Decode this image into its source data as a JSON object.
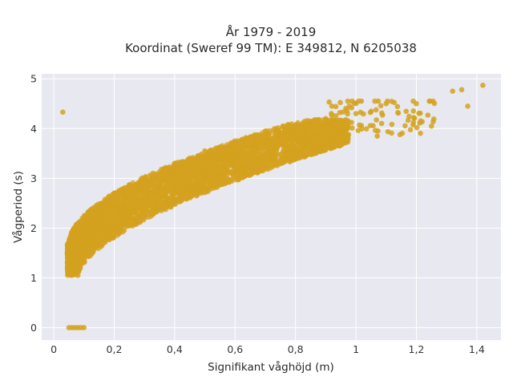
{
  "chart_data": {
    "type": "scatter",
    "title_line1": "År 1979 - 2019",
    "title_line2": "Koordinat (Sweref 99 TM): E 349812, N 6205038",
    "xlabel": "Signifikant våghöjd (m)",
    "ylabel": "Vågperiod (s)",
    "xlim": [
      -0.04,
      1.48
    ],
    "ylim": [
      -0.25,
      5.1
    ],
    "x_ticks": [
      0,
      0.2,
      0.4,
      0.6,
      0.8,
      1.0,
      1.2,
      1.4
    ],
    "x_tick_labels": [
      "0",
      "0,2",
      "0,4",
      "0,6",
      "0,8",
      "1",
      "1,2",
      "1,4"
    ],
    "y_ticks": [
      0,
      1,
      2,
      3,
      4,
      5
    ],
    "y_tick_labels": [
      "0",
      "1",
      "2",
      "3",
      "4",
      "5"
    ],
    "grid": true,
    "marker_color": "#D4A21F",
    "background_color": "#E8E9F0",
    "grid_color": "#FFFFFF",
    "sample_points": [
      {
        "x": 0.03,
        "y": 4.33
      },
      {
        "x": 0.05,
        "y": 1.55
      },
      {
        "x": 0.07,
        "y": 1.2
      },
      {
        "x": 0.08,
        "y": 1.05
      },
      {
        "x": 0.1,
        "y": 1.6
      },
      {
        "x": 0.12,
        "y": 2.1
      },
      {
        "x": 0.15,
        "y": 2.4
      },
      {
        "x": 0.2,
        "y": 2.7
      },
      {
        "x": 0.3,
        "y": 3.0
      },
      {
        "x": 0.4,
        "y": 3.3
      },
      {
        "x": 0.5,
        "y": 3.55
      },
      {
        "x": 0.6,
        "y": 3.75
      },
      {
        "x": 0.7,
        "y": 3.95
      },
      {
        "x": 0.8,
        "y": 4.05
      },
      {
        "x": 0.9,
        "y": 4.2
      },
      {
        "x": 1.0,
        "y": 4.3
      },
      {
        "x": 1.1,
        "y": 4.5
      },
      {
        "x": 1.2,
        "y": 4.5
      },
      {
        "x": 1.25,
        "y": 4.05
      },
      {
        "x": 1.32,
        "y": 4.75
      },
      {
        "x": 1.35,
        "y": 4.78
      },
      {
        "x": 1.37,
        "y": 4.45
      },
      {
        "x": 1.42,
        "y": 4.87
      },
      {
        "x": 0.05,
        "y": 0
      },
      {
        "x": 0.06,
        "y": 0
      },
      {
        "x": 0.07,
        "y": 0
      },
      {
        "x": 0.08,
        "y": 0
      },
      {
        "x": 0.09,
        "y": 0
      },
      {
        "x": 0.1,
        "y": 0
      }
    ]
  }
}
